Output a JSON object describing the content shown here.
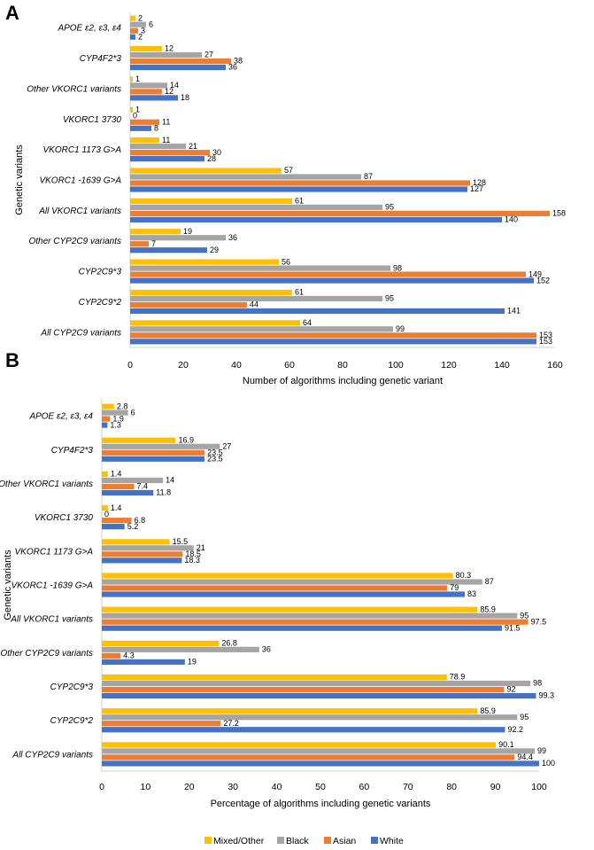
{
  "chart_data": [
    {
      "panel": "A",
      "type": "bar",
      "orientation": "horizontal",
      "categories": [
        "APOE ε2, ε3, ε4",
        "CYP4F2*3",
        "Other VKORC1 variants",
        "VKORC1 3730",
        "VKORC1 1173 G>A",
        "VKORC1 -1639 G>A",
        "All VKORC1 variants",
        "Other CYP2C9 variants",
        "CYP2C9*3",
        "CYP2C9*2",
        "All CYP2C9 variants"
      ],
      "series": [
        {
          "name": "Mixed/Other",
          "color": "#FFC000",
          "values": [
            2,
            12,
            1,
            1,
            11,
            57,
            61,
            19,
            56,
            61,
            64
          ]
        },
        {
          "name": "Black",
          "color": "#A5A5A5",
          "values": [
            6,
            27,
            14,
            0,
            21,
            87,
            95,
            36,
            98,
            95,
            99
          ]
        },
        {
          "name": "Asian",
          "color": "#ED7D31",
          "values": [
            3,
            38,
            12,
            11,
            30,
            128,
            158,
            7,
            149,
            44,
            153
          ]
        },
        {
          "name": "White",
          "color": "#4472C4",
          "values": [
            2,
            36,
            18,
            8,
            28,
            127,
            140,
            29,
            152,
            141,
            153
          ]
        }
      ],
      "labels": [
        [
          "2",
          "12",
          "1",
          "1",
          "11",
          "57",
          "61",
          "19",
          "56",
          "61",
          "64"
        ],
        [
          "6",
          "27",
          "14",
          "0",
          "21",
          "87",
          "95",
          "36",
          "98",
          "95",
          "99"
        ],
        [
          "3",
          "38",
          "12",
          "11",
          "30",
          "128",
          "158",
          "7",
          "149",
          "44",
          "153"
        ],
        [
          "2",
          "36",
          "18",
          "8",
          "28",
          "127",
          "140",
          "29",
          "152",
          "141",
          "153"
        ]
      ],
      "xlim": [
        0,
        160
      ],
      "xticks": [
        "0",
        "20",
        "40",
        "60",
        "80",
        "100",
        "120",
        "140",
        "160"
      ],
      "xlabel": "Number of algorithms including genetic variant",
      "ylabel": "Genetic variants"
    },
    {
      "panel": "B",
      "type": "bar",
      "orientation": "horizontal",
      "categories": [
        "APOE ε2, ε3, ε4",
        "CYP4F2*3",
        "Other VKORC1 variants",
        "VKORC1 3730",
        "VKORC1 1173 G>A",
        "VKORC1 -1639 G>A",
        "All VKORC1 variants",
        "Other CYP2C9 variants",
        "CYP2C9*3",
        "CYP2C9*2",
        "All CYP2C9 variants"
      ],
      "series": [
        {
          "name": "Mixed/Other",
          "color": "#FFC000",
          "values": [
            2.8,
            16.9,
            1.4,
            1.4,
            15.5,
            80.3,
            85.9,
            26.8,
            78.9,
            85.9,
            90.1
          ]
        },
        {
          "name": "Black",
          "color": "#A5A5A5",
          "values": [
            6,
            27,
            14,
            0,
            21,
            87,
            95,
            36,
            98,
            95,
            99
          ]
        },
        {
          "name": "Asian",
          "color": "#ED7D31",
          "values": [
            1.9,
            23.5,
            7.4,
            6.8,
            18.5,
            79,
            97.5,
            4.3,
            92,
            27.2,
            94.4
          ]
        },
        {
          "name": "White",
          "color": "#4472C4",
          "values": [
            1.3,
            23.5,
            11.8,
            5.2,
            18.3,
            83,
            91.5,
            19,
            99.3,
            92.2,
            100
          ]
        }
      ],
      "labels": [
        [
          "2.8",
          "16.9",
          "1.4",
          "1.4",
          "15.5",
          "80.3",
          "85.9",
          "26.8",
          "78.9",
          "85.9",
          "90.1"
        ],
        [
          "6",
          "27",
          "14",
          "0",
          "21",
          "87",
          "95",
          "36",
          "98",
          "95",
          "99"
        ],
        [
          "1.9",
          "23.5",
          "7.4",
          "6.8",
          "18.5",
          "79",
          "97.5",
          "4.3",
          "92",
          "27.2",
          "94.4"
        ],
        [
          "1.3",
          "23.5",
          "11.8",
          "5.2",
          "18.3",
          "83",
          "91.5",
          "19",
          "99.3",
          "92.2",
          "100"
        ]
      ],
      "xlim": [
        0,
        100
      ],
      "xticks": [
        "0",
        "10",
        "20",
        "30",
        "40",
        "50",
        "60",
        "70",
        "80",
        "90",
        "100"
      ],
      "xlabel": "Percentage of algorithms including genetic variants",
      "ylabel": "Genetic variants"
    }
  ],
  "legend": {
    "placement": "bottom",
    "items": [
      {
        "name": "Mixed/Other",
        "color": "#FFC000"
      },
      {
        "name": "Black",
        "color": "#A5A5A5"
      },
      {
        "name": "Asian",
        "color": "#ED7D31"
      },
      {
        "name": "White",
        "color": "#4472C4"
      }
    ]
  }
}
